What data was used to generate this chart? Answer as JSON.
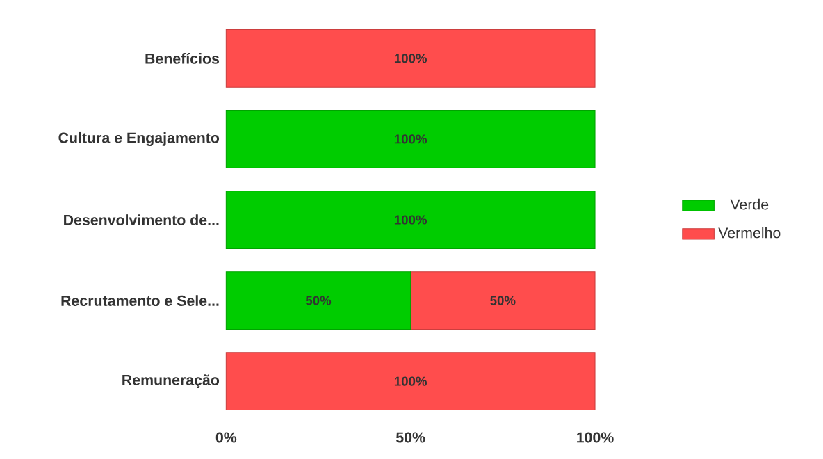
{
  "chart_data": {
    "type": "bar",
    "orientation": "horizontal",
    "stacked": true,
    "categories": [
      "Benefícios",
      "Cultura e Engajamento",
      "Desenvolvimento de...",
      "Recrutamento e Sele...",
      "Remuneração"
    ],
    "series": [
      {
        "name": "Verde",
        "color": "#00cc00",
        "values": [
          0,
          100,
          100,
          50,
          0
        ],
        "value_labels": [
          null,
          "100%",
          "100%",
          "50%",
          null
        ]
      },
      {
        "name": "Vermelho",
        "color": "#ff4d4d",
        "values": [
          100,
          0,
          0,
          50,
          100
        ],
        "value_labels": [
          "100%",
          null,
          null,
          "50%",
          "100%"
        ]
      }
    ],
    "xlim": [
      0,
      100
    ],
    "xticks": [
      {
        "value": 0,
        "label": "0%"
      },
      {
        "value": 50,
        "label": "50%"
      },
      {
        "value": 100,
        "label": "100%"
      }
    ],
    "legend": "right",
    "grid": false
  }
}
